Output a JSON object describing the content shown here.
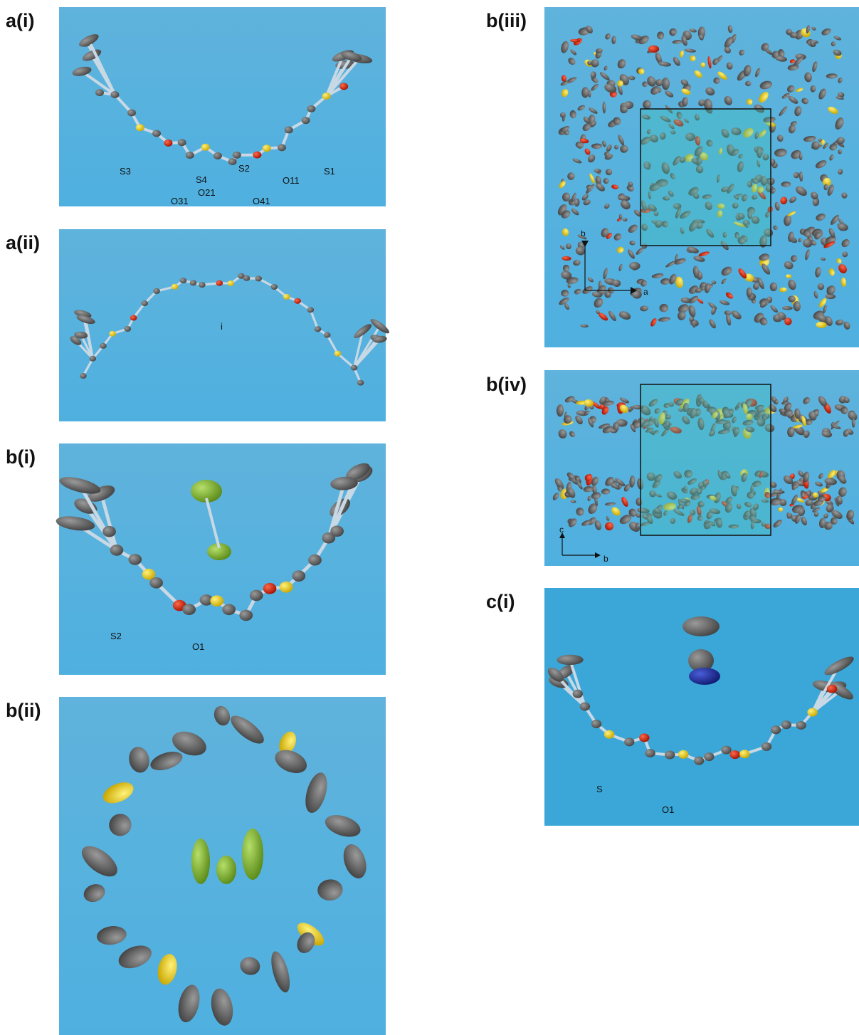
{
  "panels": [
    {
      "label": "a(i)",
      "atom_labels": [
        "S3",
        "S4",
        "S2",
        "S1",
        "O31",
        "O21",
        "O41",
        "O11"
      ]
    },
    {
      "label": "a(ii)",
      "atom_labels": [
        "i"
      ]
    },
    {
      "label": "b(i)",
      "atom_labels": [
        "S2",
        "O1"
      ]
    },
    {
      "label": "b(ii)",
      "atom_labels": []
    },
    {
      "label": "b(iii)",
      "atom_labels": [
        "b",
        "a"
      ]
    },
    {
      "label": "b(iv)",
      "atom_labels": [
        "c",
        "b"
      ]
    },
    {
      "label": "c(i)",
      "atom_labels": [
        "S",
        "O1"
      ]
    }
  ]
}
